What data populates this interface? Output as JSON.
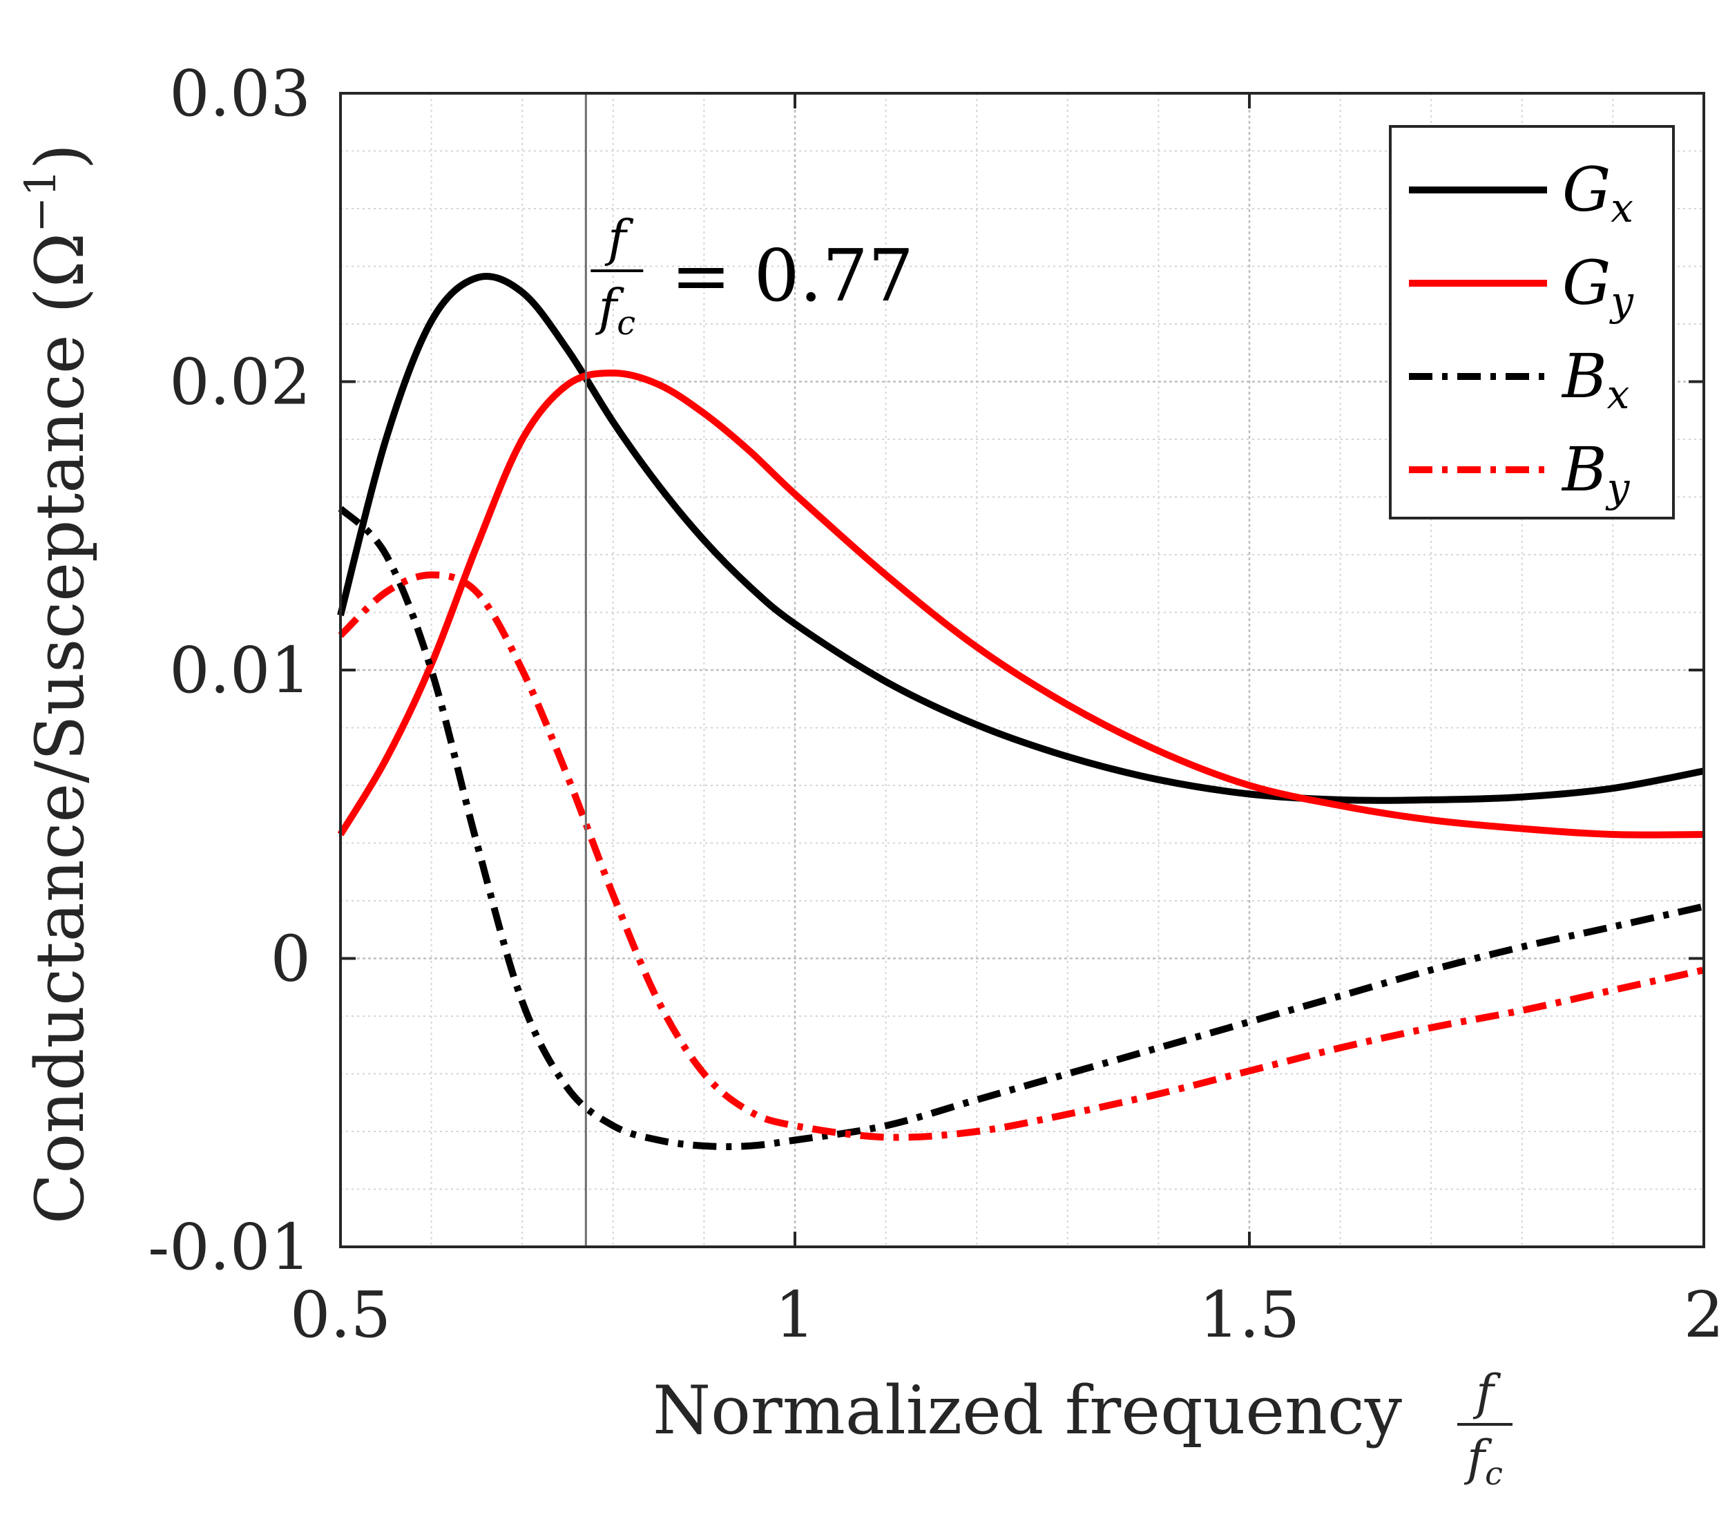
{
  "chart_data": {
    "type": "line",
    "xlabel_text": "Normalized frequency",
    "xlabel_frac": {
      "num": "f",
      "den": "f",
      "den_sub": "c"
    },
    "ylabel": "Conductance/Susceptance (Ω",
    "ylabel_sup": "−1",
    "ylabel_close": ")",
    "xlim": [
      0.5,
      2
    ],
    "ylim": [
      -0.01,
      0.03
    ],
    "xticks": [
      0.5,
      1,
      1.5,
      2
    ],
    "xtick_labels": [
      "0.5",
      "1",
      "1.5",
      "2"
    ],
    "yticks": [
      -0.01,
      0,
      0.01,
      0.02,
      0.03
    ],
    "ytick_labels": [
      "-0.01",
      "0",
      "0.01",
      "0.02",
      "0.03"
    ],
    "grid": true,
    "minor_grid": true,
    "legend_position": "top-right",
    "annotation": {
      "x": 0.77,
      "num": "f",
      "den": "f",
      "den_sub": "c",
      "text": "= 0.77"
    },
    "series": [
      {
        "name": "Gx",
        "label_main": "G",
        "label_sub": "x",
        "color": "#000000",
        "style": "solid",
        "x": [
          0.5,
          0.55,
          0.6,
          0.65,
          0.7,
          0.75,
          0.8,
          0.85,
          0.9,
          0.95,
          1.0,
          1.1,
          1.2,
          1.3,
          1.4,
          1.5,
          1.6,
          1.7,
          1.8,
          1.9,
          2.0
        ],
        "y": [
          0.0119,
          0.018,
          0.0221,
          0.0236,
          0.0231,
          0.0211,
          0.0186,
          0.0164,
          0.0145,
          0.0129,
          0.0116,
          0.0096,
          0.0081,
          0.007,
          0.0062,
          0.0057,
          0.0055,
          0.0055,
          0.0056,
          0.0059,
          0.0065
        ]
      },
      {
        "name": "Gy",
        "label_main": "G",
        "label_sub": "y",
        "color": "#ff0000",
        "style": "solid",
        "x": [
          0.5,
          0.55,
          0.6,
          0.65,
          0.7,
          0.75,
          0.8,
          0.85,
          0.9,
          0.95,
          1.0,
          1.1,
          1.2,
          1.3,
          1.4,
          1.5,
          1.6,
          1.7,
          1.8,
          1.9,
          2.0
        ],
        "y": [
          0.0043,
          0.0069,
          0.0102,
          0.0143,
          0.018,
          0.0199,
          0.0203,
          0.0199,
          0.0189,
          0.0176,
          0.0161,
          0.0133,
          0.0108,
          0.0088,
          0.0072,
          0.006,
          0.0053,
          0.0048,
          0.0045,
          0.0043,
          0.0043
        ]
      },
      {
        "name": "Bx",
        "label_main": "B",
        "label_sub": "x",
        "color": "#000000",
        "style": "dashdot",
        "x": [
          0.5,
          0.55,
          0.6,
          0.65,
          0.7,
          0.75,
          0.8,
          0.85,
          0.9,
          0.95,
          1.0,
          1.1,
          1.2,
          1.3,
          1.4,
          1.5,
          1.6,
          1.7,
          1.8,
          1.9,
          2.0
        ],
        "y": [
          0.0156,
          0.014,
          0.01,
          0.004,
          -0.0015,
          -0.0045,
          -0.0058,
          -0.0063,
          -0.0065,
          -0.0065,
          -0.0063,
          -0.0058,
          -0.0049,
          -0.004,
          -0.0031,
          -0.0022,
          -0.0013,
          -0.0004,
          0.0004,
          0.0011,
          0.0018
        ]
      },
      {
        "name": "By",
        "label_main": "B",
        "label_sub": "y",
        "color": "#ff0000",
        "style": "dashdot",
        "x": [
          0.5,
          0.55,
          0.6,
          0.65,
          0.7,
          0.75,
          0.8,
          0.85,
          0.9,
          0.95,
          1.0,
          1.1,
          1.2,
          1.3,
          1.4,
          1.5,
          1.6,
          1.7,
          1.8,
          1.9,
          2.0
        ],
        "y": [
          0.0112,
          0.0127,
          0.0133,
          0.0127,
          0.01,
          0.0063,
          0.0022,
          -0.0015,
          -0.004,
          -0.0053,
          -0.0058,
          -0.0062,
          -0.006,
          -0.0054,
          -0.0047,
          -0.0039,
          -0.0031,
          -0.0024,
          -0.0018,
          -0.0011,
          -0.0004
        ]
      }
    ]
  }
}
